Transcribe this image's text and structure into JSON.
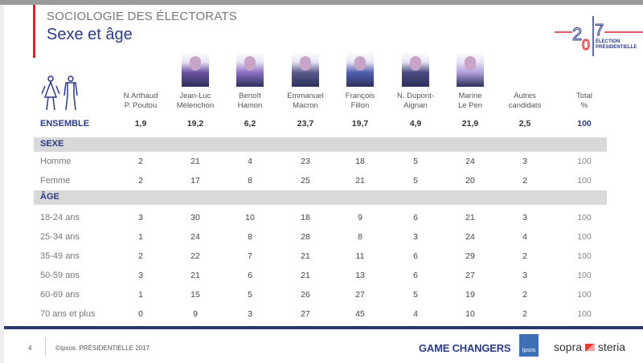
{
  "header": {
    "supertitle": "SOCIOLOGIE DES ÉLECTORATS",
    "title": "Sexe et âge"
  },
  "logo": {
    "text": "2017 ÉLECTION PRÉSIDENTIELLE",
    "line1": "ÉLECTION",
    "line2": "PRÉSIDENTIELLE"
  },
  "columns": [
    {
      "l1": "N.Arthaud",
      "l2": "P. Poutou",
      "photo": false
    },
    {
      "l1": "Jean-Luc",
      "l2": "Mélenchon",
      "photo": true
    },
    {
      "l1": "Benoît",
      "l2": "Hamon",
      "photo": true
    },
    {
      "l1": "Emmanuel",
      "l2": "Macron",
      "photo": true
    },
    {
      "l1": "François",
      "l2": "Fillon",
      "photo": true
    },
    {
      "l1": "N. Dupont-",
      "l2": "Aignan",
      "photo": true
    },
    {
      "l1": "Marine",
      "l2": "Le Pen",
      "photo": true
    },
    {
      "l1": "Autres",
      "l2": "candidats",
      "photo": false
    },
    {
      "l1": "Total",
      "l2": "%",
      "photo": false
    }
  ],
  "ensemble": {
    "label": "ENSEMBLE",
    "values": [
      "1,9",
      "19,2",
      "6,2",
      "23,7",
      "19,7",
      "4,9",
      "21,9",
      "2,5",
      "100"
    ]
  },
  "sections": [
    {
      "title": "SEXE",
      "rows": [
        {
          "label": "Homme",
          "values": [
            "2",
            "21",
            "4",
            "23",
            "18",
            "5",
            "24",
            "3",
            "100"
          ]
        },
        {
          "label": "Femme",
          "values": [
            "2",
            "17",
            "8",
            "25",
            "21",
            "5",
            "20",
            "2",
            "100"
          ]
        }
      ]
    },
    {
      "title": "ÂGE",
      "rows": [
        {
          "label": "18-24 ans",
          "values": [
            "3",
            "30",
            "10",
            "18",
            "9",
            "6",
            "21",
            "3",
            "100"
          ]
        },
        {
          "label": "25-34 ans",
          "values": [
            "1",
            "24",
            "8",
            "28",
            "8",
            "3",
            "24",
            "4",
            "100"
          ]
        },
        {
          "label": "35-49 ans",
          "values": [
            "2",
            "22",
            "7",
            "21",
            "11",
            "6",
            "29",
            "2",
            "100"
          ]
        },
        {
          "label": "50-59 ans",
          "values": [
            "3",
            "21",
            "6",
            "21",
            "13",
            "6",
            "27",
            "3",
            "100"
          ]
        },
        {
          "label": "60-69 ans",
          "values": [
            "1",
            "15",
            "5",
            "26",
            "27",
            "5",
            "19",
            "2",
            "100"
          ]
        },
        {
          "label": "70 ans et plus",
          "values": [
            "0",
            "9",
            "3",
            "27",
            "45",
            "4",
            "10",
            "2",
            "100"
          ]
        }
      ]
    }
  ],
  "footer": {
    "page": "4",
    "copyright": "©Ipsos.  PRÉSIDENTIELLE 2017",
    "game_changers": "GAME CHANGERS",
    "ipsos": "Ipsos",
    "sopra": "sopra",
    "steria": "steria"
  },
  "colors": {
    "brand_blue": "#2b3a87",
    "accent_red": "#d9232e",
    "band_gray": "#d9d9d9"
  }
}
